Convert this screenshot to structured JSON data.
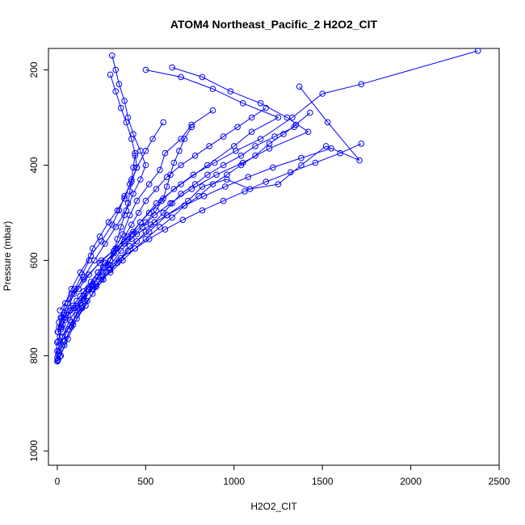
{
  "chart_data": {
    "type": "scatter",
    "title": "ATOM4 Northeast_Pacific_2 H2O2_CIT",
    "xlabel": "H2O2_CIT",
    "ylabel": "Pressure (mbar)",
    "xlim": [
      -50,
      2500
    ],
    "ylim": [
      1030,
      155
    ],
    "y_reversed": true,
    "x_ticks": [
      0,
      500,
      1000,
      1500,
      2000,
      2500
    ],
    "y_ticks": [
      200,
      400,
      600,
      800,
      1000
    ],
    "x_tick_labels": [
      "0",
      "500",
      "1000",
      "1500",
      "2000",
      "2500"
    ],
    "y_tick_labels": [
      "200",
      "400",
      "600",
      "800",
      "1000"
    ],
    "grid": false,
    "color": "#0000ff",
    "marker": "open-circle",
    "connected": true,
    "series": [
      {
        "x": [
          5,
          20,
          40,
          80,
          120,
          170,
          230,
          300,
          380,
          470,
          560,
          700,
          850,
          1000,
          1100,
          1250,
          1050,
          880,
          700,
          500
        ],
        "y": [
          808,
          800,
          778,
          740,
          700,
          660,
          625,
          600,
          560,
          520,
          480,
          440,
          400,
          360,
          330,
          300,
          270,
          240,
          215,
          200
        ]
      },
      {
        "x": [
          10,
          40,
          90,
          160,
          220,
          300,
          360,
          420,
          480,
          550,
          640,
          760,
          900,
          1050,
          1200,
          1420,
          1300,
          1150,
          980,
          820,
          650
        ],
        "y": [
          795,
          770,
          735,
          695,
          655,
          610,
          580,
          555,
          530,
          505,
          480,
          450,
          420,
          395,
          365,
          330,
          300,
          270,
          245,
          215,
          195
        ]
      },
      {
        "x": [
          3,
          15,
          60,
          110,
          170,
          260,
          340,
          410,
          520,
          620,
          740,
          820,
          960,
          1090,
          1250,
          1380,
          1520,
          1710,
          1530,
          1370
        ],
        "y": [
          810,
          802,
          765,
          722,
          685,
          640,
          605,
          570,
          540,
          505,
          475,
          445,
          430,
          450,
          440,
          400,
          360,
          390,
          310,
          235
        ]
      },
      {
        "x": [
          8,
          30,
          70,
          130,
          200,
          260,
          320,
          370,
          410,
          450,
          520,
          580,
          610,
          700,
          760,
          880
        ],
        "y": [
          790,
          760,
          725,
          690,
          650,
          615,
          580,
          545,
          505,
          475,
          440,
          410,
          375,
          345,
          315,
          285
        ]
      },
      {
        "x": [
          5,
          25,
          55,
          95,
          150,
          210,
          270,
          330,
          390,
          430,
          470,
          500,
          470,
          430,
          400,
          380,
          350,
          330,
          310
        ],
        "y": [
          770,
          740,
          705,
          670,
          635,
          600,
          565,
          530,
          495,
          460,
          430,
          400,
          370,
          335,
          300,
          265,
          230,
          200,
          170
        ]
      },
      {
        "x": [
          2,
          20,
          45,
          80,
          130,
          190,
          250,
          310,
          350,
          380,
          420,
          450,
          440,
          420,
          390,
          360,
          330,
          300
        ],
        "y": [
          750,
          720,
          690,
          660,
          625,
          590,
          560,
          525,
          495,
          465,
          435,
          405,
          375,
          345,
          310,
          280,
          245,
          210
        ]
      },
      {
        "x": [
          10,
          35,
          60,
          100,
          140,
          180,
          200,
          240,
          290,
          340,
          380,
          410,
          450,
          500,
          540,
          600
        ],
        "y": [
          740,
          715,
          690,
          660,
          630,
          600,
          575,
          550,
          520,
          495,
          470,
          440,
          405,
          370,
          345,
          310
        ]
      },
      {
        "x": [
          60,
          120,
          180,
          250,
          330,
          400,
          430,
          470,
          520,
          590,
          660,
          770,
          890,
          1010,
          1150,
          1330,
          1500,
          1720,
          2380
        ],
        "y": [
          690,
          660,
          630,
          600,
          575,
          550,
          540,
          520,
          500,
          475,
          450,
          420,
          395,
          370,
          345,
          300,
          250,
          230,
          160
        ]
      },
      {
        "x": [
          30,
          80,
          140,
          200,
          260,
          290,
          320,
          340,
          360,
          380,
          400,
          410,
          420,
          430,
          440
        ],
        "y": [
          760,
          730,
          700,
          670,
          640,
          610,
          580,
          555,
          530,
          505,
          480,
          455,
          430,
          405,
          380
        ]
      },
      {
        "x": [
          20,
          60,
          110,
          150,
          200,
          250,
          300,
          340,
          380,
          420,
          460,
          500,
          560,
          620,
          700,
          780,
          860,
          940,
          1020,
          1100,
          1180
        ],
        "y": [
          775,
          745,
          715,
          685,
          655,
          625,
          600,
          575,
          550,
          525,
          500,
          475,
          450,
          425,
          400,
          380,
          360,
          340,
          320,
          300,
          280
        ]
      },
      {
        "x": [
          50,
          100,
          150,
          200,
          250,
          300,
          350,
          400,
          450,
          500,
          550,
          600,
          650,
          700,
          780,
          850,
          940,
          1040,
          1120,
          1230,
          1340
        ],
        "y": [
          720,
          700,
          680,
          660,
          640,
          620,
          600,
          580,
          560,
          540,
          520,
          500,
          480,
          460,
          440,
          420,
          400,
          380,
          360,
          340,
          320
        ]
      },
      {
        "x": [
          90,
          150,
          220,
          300,
          370,
          440,
          500,
          580,
          650,
          720,
          800,
          880,
          960,
          1040,
          1120,
          1200,
          1280,
          1350,
          1430
        ],
        "y": [
          700,
          675,
          650,
          625,
          600,
          575,
          555,
          530,
          510,
          485,
          465,
          440,
          420,
          400,
          380,
          355,
          335,
          315,
          290
        ]
      },
      {
        "x": [
          0,
          0,
          5,
          0,
          10,
          0,
          15,
          5,
          20,
          10,
          25,
          40
        ],
        "y": [
          812,
          805,
          798,
          790,
          780,
          772,
          760,
          750,
          740,
          730,
          720,
          710
        ]
      },
      {
        "x": [
          30,
          60,
          90,
          130,
          180,
          230,
          290,
          360,
          440,
          520,
          610,
          710,
          820,
          940,
          1060,
          1180,
          1320,
          1460,
          1600,
          1720
        ],
        "y": [
          735,
          715,
          695,
          675,
          655,
          635,
          615,
          595,
          575,
          555,
          535,
          515,
          495,
          475,
          455,
          435,
          415,
          395,
          375,
          355
        ]
      },
      {
        "x": [
          15,
          80,
          150,
          240,
          330,
          420,
          500,
          560,
          600,
          620,
          640,
          660,
          690,
          720,
          760
        ],
        "y": [
          705,
          670,
          640,
          605,
          575,
          545,
          520,
          495,
          470,
          445,
          420,
          395,
          370,
          345,
          320
        ]
      },
      {
        "x": [
          20,
          45,
          75,
          110,
          150,
          190,
          230,
          270,
          320,
          380,
          450,
          530,
          620,
          720,
          830,
          950,
          1080,
          1220,
          1380,
          1550
        ],
        "y": [
          745,
          725,
          705,
          685,
          665,
          645,
          625,
          605,
          585,
          565,
          545,
          525,
          505,
          485,
          465,
          445,
          425,
          405,
          385,
          365
        ]
      }
    ]
  }
}
